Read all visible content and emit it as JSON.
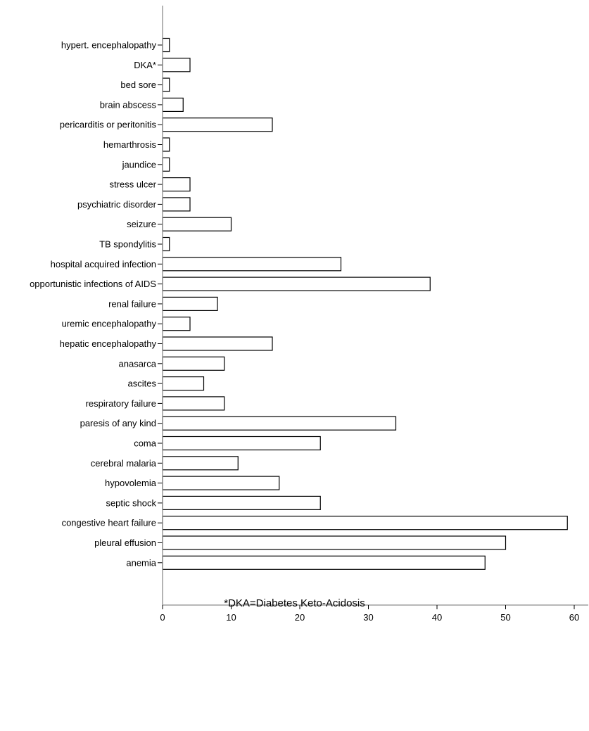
{
  "chart_data": {
    "type": "bar",
    "orientation": "horizontal",
    "categories": [
      "hypert. encephalopathy",
      "DKA*",
      "bed sore",
      "brain abscess",
      "pericarditis or peritonitis",
      "hemarthrosis",
      "jaundice",
      "stress ulcer",
      "psychiatric disorder",
      "seizure",
      "TB spondylitis",
      "hospital acquired infection",
      "opportunistic infections of AIDS",
      "renal failure",
      "uremic encephalopathy",
      "hepatic encephalopathy",
      "anasarca",
      "ascites",
      "respiratory failure",
      "paresis of any kind",
      "coma",
      "cerebral malaria",
      "hypovolemia",
      "septic shock",
      "congestive heart failure",
      "pleural effusion",
      "anemia"
    ],
    "values": [
      1,
      4,
      1,
      3,
      16,
      1,
      1,
      4,
      4,
      10,
      1,
      26,
      39,
      8,
      4,
      16,
      9,
      6,
      9,
      34,
      23,
      11,
      17,
      23,
      59,
      50,
      47
    ],
    "xlim": [
      0,
      60
    ],
    "xticks": [
      0,
      10,
      20,
      30,
      40,
      50,
      60
    ],
    "grid": false,
    "colors": {
      "bar_fill": "#ffffff",
      "bar_stroke": "#000000",
      "axis": "#8c8c8c"
    }
  },
  "footnote": "*DKA=Diabetes Keto-Acidosis"
}
